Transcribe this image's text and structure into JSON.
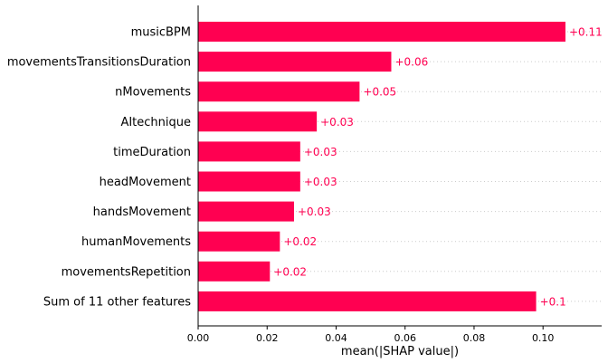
{
  "chart_data": {
    "type": "bar",
    "orientation": "horizontal",
    "categories": [
      "musicBPM",
      "movementsTransitionsDuration",
      "nMovements",
      "AItechnique",
      "timeDuration",
      "headMovement",
      "handsMovement",
      "humanMovements",
      "movementsRepetition",
      "Sum of 11 other features"
    ],
    "values": [
      0.1065,
      0.056,
      0.0468,
      0.0344,
      0.0296,
      0.0296,
      0.0278,
      0.0237,
      0.0208,
      0.098
    ],
    "value_labels": [
      "+0.11",
      "+0.06",
      "+0.05",
      "+0.03",
      "+0.03",
      "+0.03",
      "+0.03",
      "+0.02",
      "+0.02",
      "+0.1"
    ],
    "title": "",
    "xlabel": "mean(|SHAP value|)",
    "ylabel": "",
    "xlim": [
      0,
      0.117
    ],
    "xticks": [
      0,
      0.02,
      0.04,
      0.06,
      0.08,
      0.1
    ],
    "xtick_labels": [
      "0.00",
      "0.02",
      "0.04",
      "0.06",
      "0.08",
      "0.10"
    ],
    "grid": "horizontal dotted lines per category",
    "legend": "none",
    "colors": {
      "bar": "#ff0051",
      "value_label": "#ff0051",
      "grid": "#cccccc",
      "axis": "#000000"
    }
  }
}
